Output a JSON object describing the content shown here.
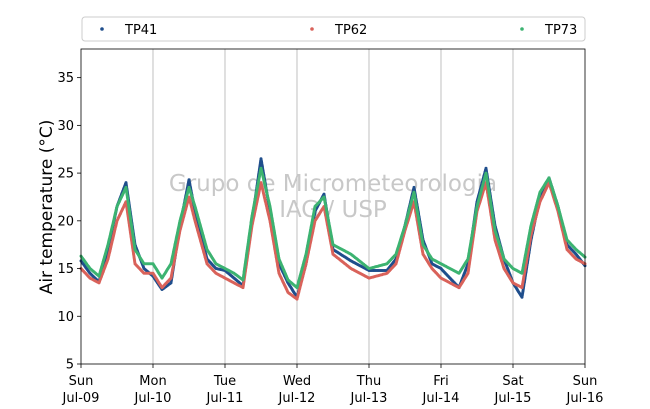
{
  "chart_data": {
    "type": "scatter",
    "ylabel": "Air temperature (°C)",
    "ylim": [
      5,
      38
    ],
    "yticks": [
      5,
      10,
      15,
      20,
      25,
      30,
      35
    ],
    "xlim": [
      "2023-07-09",
      "2023-07-16"
    ],
    "xticks": [
      {
        "date": "2023-07-09",
        "day": "Sun",
        "label": "Jul-09"
      },
      {
        "date": "2023-07-10",
        "day": "Mon",
        "label": "Jul-10"
      },
      {
        "date": "2023-07-11",
        "day": "Tue",
        "label": "Jul-11"
      },
      {
        "date": "2023-07-12",
        "day": "Wed",
        "label": "Jul-12"
      },
      {
        "date": "2023-07-13",
        "day": "Thu",
        "label": "Jul-13"
      },
      {
        "date": "2023-07-14",
        "day": "Fri",
        "label": "Jul-14"
      },
      {
        "date": "2023-07-15",
        "day": "Sat",
        "label": "Jul-15"
      },
      {
        "date": "2023-07-16",
        "day": "Sun",
        "label": "Jul-16"
      }
    ],
    "grid": "vertical",
    "legend_position": "top",
    "watermark": [
      "Grupo de Micrometeorologia",
      "IAG / USP"
    ],
    "series": [
      {
        "name": "TP41",
        "color": "#1f4e8c",
        "points": [
          [
            "2023-07-09 00:00",
            15.8
          ],
          [
            "2023-07-09 03:00",
            14.5
          ],
          [
            "2023-07-09 06:00",
            13.6
          ],
          [
            "2023-07-09 09:00",
            17.0
          ],
          [
            "2023-07-09 12:00",
            21.5
          ],
          [
            "2023-07-09 15:00",
            24.0
          ],
          [
            "2023-07-09 18:00",
            17.5
          ],
          [
            "2023-07-09 21:00",
            15.0
          ],
          [
            "2023-07-10 00:00",
            14.2
          ],
          [
            "2023-07-10 03:00",
            12.8
          ],
          [
            "2023-07-10 06:00",
            13.5
          ],
          [
            "2023-07-10 09:00",
            19.5
          ],
          [
            "2023-07-10 12:00",
            24.3
          ],
          [
            "2023-07-10 14:00",
            21.0
          ],
          [
            "2023-07-10 18:00",
            16.0
          ],
          [
            "2023-07-10 21:00",
            15.0
          ],
          [
            "2023-07-11 00:00",
            14.8
          ],
          [
            "2023-07-11 03:00",
            14.0
          ],
          [
            "2023-07-11 06:00",
            13.2
          ],
          [
            "2023-07-11 09:00",
            20.0
          ],
          [
            "2023-07-11 12:00",
            26.5
          ],
          [
            "2023-07-11 15:00",
            21.0
          ],
          [
            "2023-07-11 18:00",
            15.5
          ],
          [
            "2023-07-11 21:00",
            13.5
          ],
          [
            "2023-07-12 00:00",
            12.0
          ],
          [
            "2023-07-12 03:00",
            15.5
          ],
          [
            "2023-07-12 06:00",
            21.0
          ],
          [
            "2023-07-12 09:00",
            22.8
          ],
          [
            "2023-07-12 12:00",
            17.0
          ],
          [
            "2023-07-12 18:00",
            15.8
          ],
          [
            "2023-07-13 00:00",
            14.8
          ],
          [
            "2023-07-13 06:00",
            14.8
          ],
          [
            "2023-07-13 09:00",
            16.0
          ],
          [
            "2023-07-13 12:00",
            19.5
          ],
          [
            "2023-07-13 15:00",
            23.5
          ],
          [
            "2023-07-13 18:00",
            18.0
          ],
          [
            "2023-07-13 21:00",
            15.5
          ],
          [
            "2023-07-14 00:00",
            15.0
          ],
          [
            "2023-07-14 06:00",
            13.0
          ],
          [
            "2023-07-14 09:00",
            15.5
          ],
          [
            "2023-07-14 12:00",
            22.0
          ],
          [
            "2023-07-14 15:00",
            25.5
          ],
          [
            "2023-07-14 18:00",
            19.5
          ],
          [
            "2023-07-14 21:00",
            16.0
          ],
          [
            "2023-07-15 00:00",
            13.5
          ],
          [
            "2023-07-15 03:00",
            12.0
          ],
          [
            "2023-07-15 06:00",
            18.0
          ],
          [
            "2023-07-15 09:00",
            22.5
          ],
          [
            "2023-07-15 12:00",
            24.5
          ],
          [
            "2023-07-15 15:00",
            21.5
          ],
          [
            "2023-07-15 18:00",
            17.5
          ],
          [
            "2023-07-15 21:00",
            16.5
          ],
          [
            "2023-07-16 00:00",
            15.3
          ]
        ]
      },
      {
        "name": "TP62",
        "color": "#d9625a",
        "points": [
          [
            "2023-07-09 00:00",
            15.0
          ],
          [
            "2023-07-09 03:00",
            14.0
          ],
          [
            "2023-07-09 06:00",
            13.5
          ],
          [
            "2023-07-09 09:00",
            16.0
          ],
          [
            "2023-07-09 12:00",
            20.0
          ],
          [
            "2023-07-09 15:00",
            22.0
          ],
          [
            "2023-07-09 18:00",
            15.5
          ],
          [
            "2023-07-09 21:00",
            14.5
          ],
          [
            "2023-07-10 00:00",
            14.5
          ],
          [
            "2023-07-10 03:00",
            13.0
          ],
          [
            "2023-07-10 06:00",
            14.0
          ],
          [
            "2023-07-10 09:00",
            19.0
          ],
          [
            "2023-07-10 12:00",
            22.5
          ],
          [
            "2023-07-10 14:00",
            20.0
          ],
          [
            "2023-07-10 18:00",
            15.5
          ],
          [
            "2023-07-10 21:00",
            14.5
          ],
          [
            "2023-07-11 00:00",
            14.0
          ],
          [
            "2023-07-11 03:00",
            13.5
          ],
          [
            "2023-07-11 06:00",
            13.0
          ],
          [
            "2023-07-11 09:00",
            19.5
          ],
          [
            "2023-07-11 12:00",
            24.0
          ],
          [
            "2023-07-11 15:00",
            20.0
          ],
          [
            "2023-07-11 18:00",
            14.5
          ],
          [
            "2023-07-11 21:00",
            12.5
          ],
          [
            "2023-07-12 00:00",
            11.8
          ],
          [
            "2023-07-12 03:00",
            15.5
          ],
          [
            "2023-07-12 06:00",
            20.0
          ],
          [
            "2023-07-12 09:00",
            21.5
          ],
          [
            "2023-07-12 12:00",
            16.5
          ],
          [
            "2023-07-12 18:00",
            15.0
          ],
          [
            "2023-07-13 00:00",
            14.0
          ],
          [
            "2023-07-13 06:00",
            14.5
          ],
          [
            "2023-07-13 09:00",
            15.5
          ],
          [
            "2023-07-13 12:00",
            19.0
          ],
          [
            "2023-07-13 15:00",
            22.0
          ],
          [
            "2023-07-13 18:00",
            16.5
          ],
          [
            "2023-07-13 21:00",
            15.0
          ],
          [
            "2023-07-14 00:00",
            14.0
          ],
          [
            "2023-07-14 06:00",
            13.0
          ],
          [
            "2023-07-14 09:00",
            14.5
          ],
          [
            "2023-07-14 12:00",
            21.0
          ],
          [
            "2023-07-14 15:00",
            24.0
          ],
          [
            "2023-07-14 18:00",
            18.0
          ],
          [
            "2023-07-14 21:00",
            15.0
          ],
          [
            "2023-07-15 00:00",
            13.5
          ],
          [
            "2023-07-15 03:00",
            13.0
          ],
          [
            "2023-07-15 06:00",
            18.5
          ],
          [
            "2023-07-15 09:00",
            22.0
          ],
          [
            "2023-07-15 12:00",
            24.0
          ],
          [
            "2023-07-15 15:00",
            21.0
          ],
          [
            "2023-07-15 18:00",
            17.0
          ],
          [
            "2023-07-15 21:00",
            16.0
          ],
          [
            "2023-07-16 00:00",
            15.5
          ]
        ]
      },
      {
        "name": "TP73",
        "color": "#3cb371",
        "points": [
          [
            "2023-07-09 00:00",
            16.3
          ],
          [
            "2023-07-09 03:00",
            15.0
          ],
          [
            "2023-07-09 06:00",
            14.2
          ],
          [
            "2023-07-09 09:00",
            17.5
          ],
          [
            "2023-07-09 12:00",
            21.5
          ],
          [
            "2023-07-09 15:00",
            23.5
          ],
          [
            "2023-07-09 18:00",
            17.0
          ],
          [
            "2023-07-09 21:00",
            15.5
          ],
          [
            "2023-07-10 00:00",
            15.5
          ],
          [
            "2023-07-10 03:00",
            14.0
          ],
          [
            "2023-07-10 06:00",
            15.5
          ],
          [
            "2023-07-10 09:00",
            20.0
          ],
          [
            "2023-07-10 12:00",
            23.5
          ],
          [
            "2023-07-10 14:00",
            21.5
          ],
          [
            "2023-07-10 18:00",
            17.0
          ],
          [
            "2023-07-10 21:00",
            15.5
          ],
          [
            "2023-07-11 00:00",
            15.0
          ],
          [
            "2023-07-11 03:00",
            14.5
          ],
          [
            "2023-07-11 06:00",
            13.8
          ],
          [
            "2023-07-11 09:00",
            20.5
          ],
          [
            "2023-07-11 12:00",
            25.5
          ],
          [
            "2023-07-11 15:00",
            21.5
          ],
          [
            "2023-07-11 18:00",
            16.0
          ],
          [
            "2023-07-11 21:00",
            13.8
          ],
          [
            "2023-07-12 00:00",
            13.0
          ],
          [
            "2023-07-12 03:00",
            16.5
          ],
          [
            "2023-07-12 06:00",
            21.5
          ],
          [
            "2023-07-12 09:00",
            22.5
          ],
          [
            "2023-07-12 12:00",
            17.5
          ],
          [
            "2023-07-12 18:00",
            16.5
          ],
          [
            "2023-07-13 00:00",
            15.0
          ],
          [
            "2023-07-13 06:00",
            15.5
          ],
          [
            "2023-07-13 09:00",
            16.5
          ],
          [
            "2023-07-13 12:00",
            19.5
          ],
          [
            "2023-07-13 15:00",
            23.0
          ],
          [
            "2023-07-13 18:00",
            17.5
          ],
          [
            "2023-07-13 21:00",
            16.0
          ],
          [
            "2023-07-14 00:00",
            15.5
          ],
          [
            "2023-07-14 06:00",
            14.5
          ],
          [
            "2023-07-14 09:00",
            16.0
          ],
          [
            "2023-07-14 12:00",
            21.5
          ],
          [
            "2023-07-14 15:00",
            25.0
          ],
          [
            "2023-07-14 18:00",
            19.0
          ],
          [
            "2023-07-14 21:00",
            16.0
          ],
          [
            "2023-07-15 00:00",
            15.0
          ],
          [
            "2023-07-15 03:00",
            14.5
          ],
          [
            "2023-07-15 06:00",
            19.5
          ],
          [
            "2023-07-15 09:00",
            23.0
          ],
          [
            "2023-07-15 12:00",
            24.5
          ],
          [
            "2023-07-15 15:00",
            21.5
          ],
          [
            "2023-07-15 18:00",
            18.0
          ],
          [
            "2023-07-15 21:00",
            17.0
          ],
          [
            "2023-07-16 00:00",
            16.2
          ]
        ]
      }
    ]
  }
}
